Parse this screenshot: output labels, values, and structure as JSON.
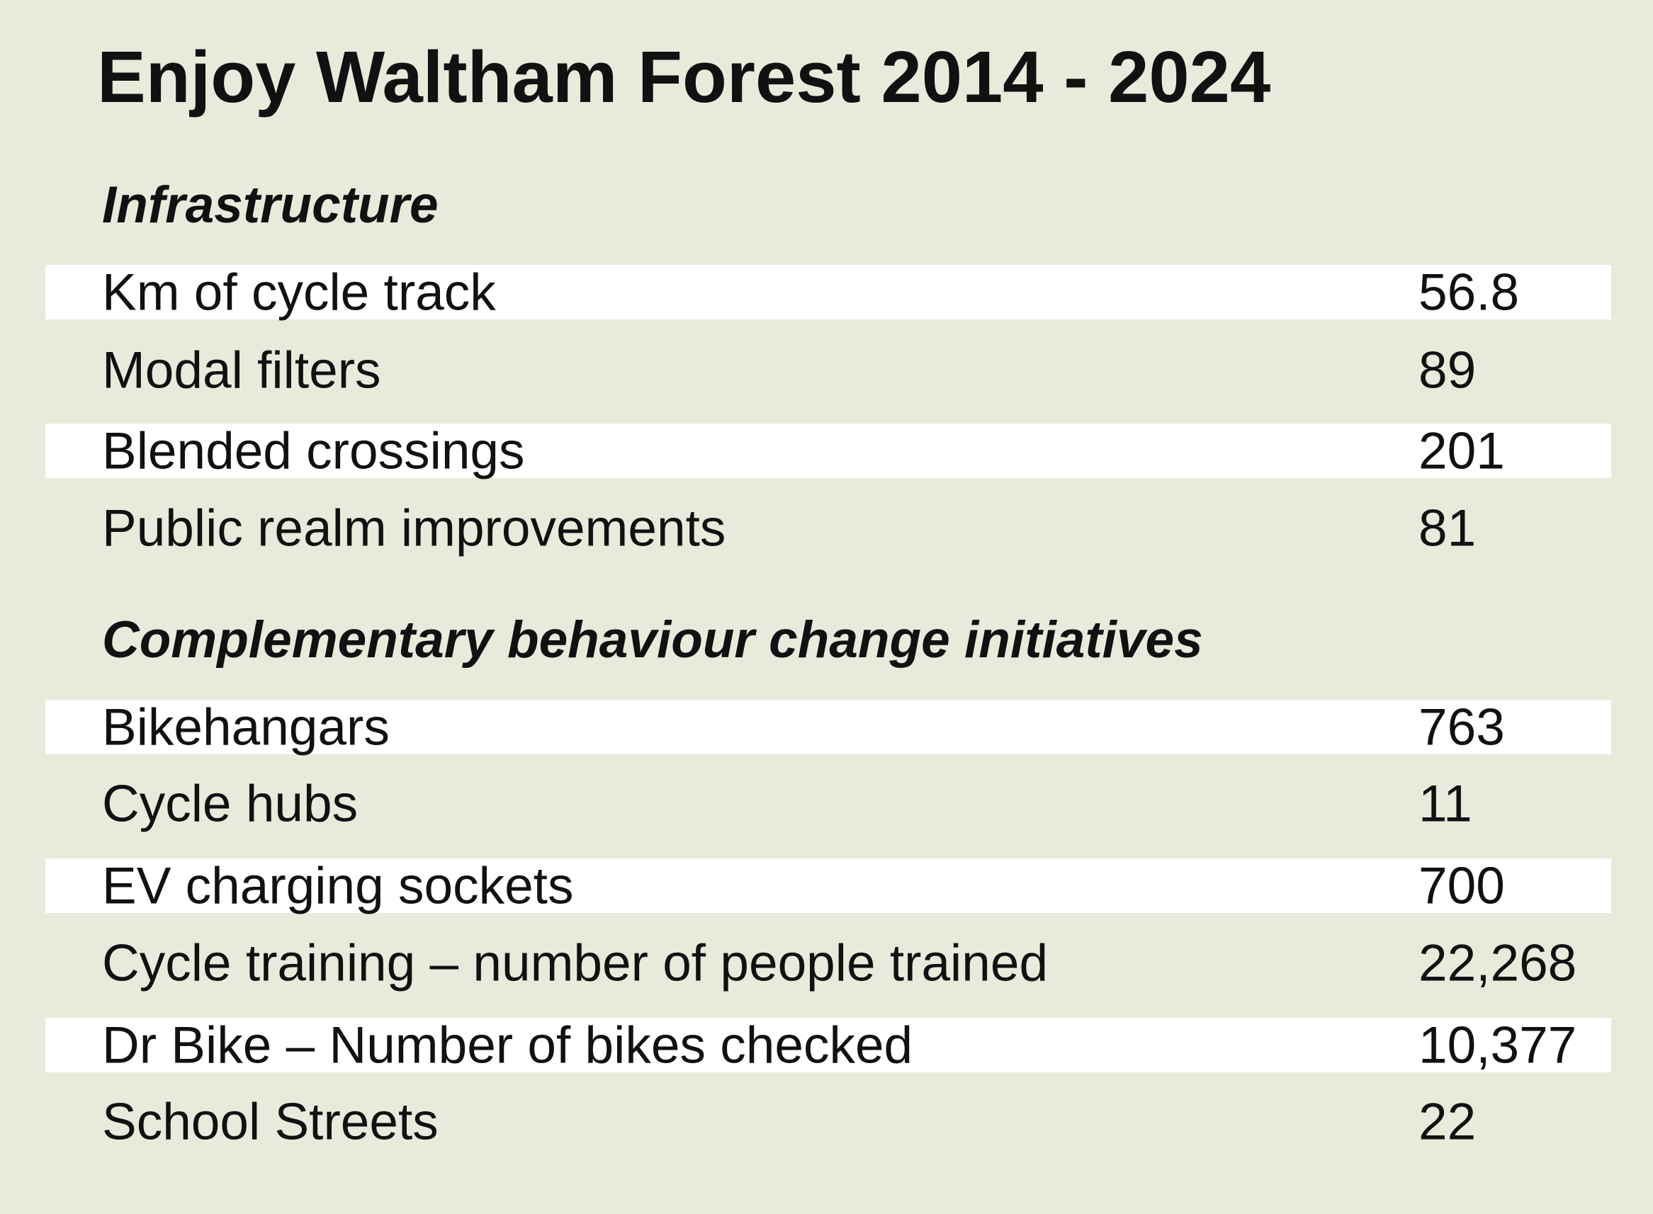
{
  "title": "Enjoy Waltham Forest 2014 - 2024",
  "sections": [
    {
      "heading": "Infrastructure",
      "rows": [
        {
          "label": "Km of cycle track",
          "value": "56.8"
        },
        {
          "label": "Modal filters",
          "value": "89"
        },
        {
          "label": "Blended crossings",
          "value": "201"
        },
        {
          "label": "Public realm improvements",
          "value": "81"
        }
      ]
    },
    {
      "heading": "Complementary behaviour change initiatives",
      "rows": [
        {
          "label": "Bikehangars",
          "value": "763"
        },
        {
          "label": "Cycle hubs",
          "value": "11"
        },
        {
          "label": "EV charging sockets",
          "value": "700"
        },
        {
          "label": "Cycle training – number of people trained",
          "value": "22,268"
        },
        {
          "label": "Dr Bike – Number of bikes checked",
          "value": "10,377"
        },
        {
          "label": "School Streets",
          "value": "22"
        }
      ]
    }
  ]
}
